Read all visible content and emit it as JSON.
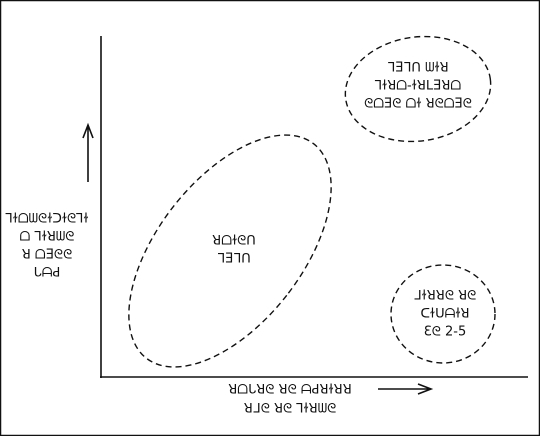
{
  "regions": [
    {
      "lines": [
        "ᒣƎᒣᑎ ᗯɫꓤ",
        "ꓶɫꓤᗝ-ɫꓤᒪƎꓤᗝ",
        "ᘓᗝƎᘓ ᗝɫ ꓤᘓᗝƎᘓ"
      ]
    },
    {
      "lines": [
        "ꓤᗝɫᘓᑎ",
        "ᒣƎᒣᑎ"
      ]
    },
    {
      "lines": [
        "ᒧɫꓤꓤᘓ ꓤᘓ",
        "ᑕɫᑌᗩɫꓤ",
        "Ɛᘓ 2-5"
      ]
    }
  ],
  "y_axis_label": [
    "ꓶɫᗝᗯᘓɫᑐɫᘓꓶɫ",
    "ᗝ ꓶɫꓤᗯᘓ",
    "ꓤ ᗝƎᘓᘓ",
    "ᒐᗩꓒ"
  ],
  "x_axis_label": [
    "ꓤᗝᒐꓤᘓ ꓤᘓ ᗩꓒꓤɫꓤꓤ",
    "ꓤᒧᘓ ꓤᘓ ꓶɫꓤᗯᘓ"
  ]
}
